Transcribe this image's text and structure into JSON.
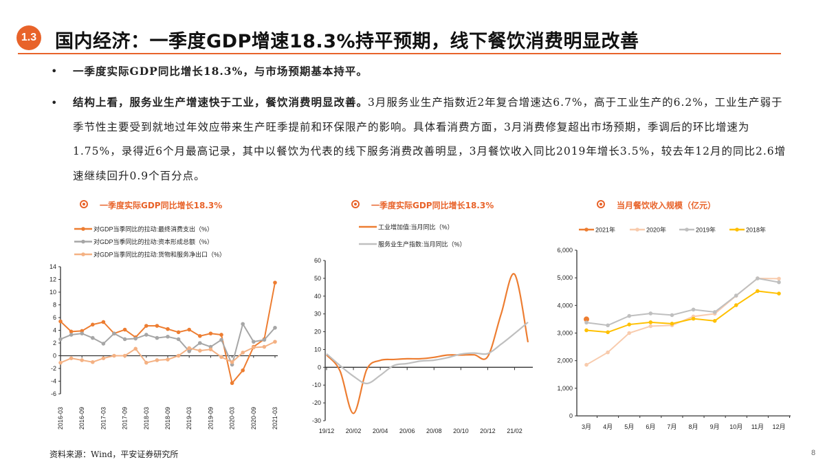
{
  "header": {
    "badge": "1.3",
    "title": "国内经济：一季度GDP增速18.3%持平预期，线下餐饮消费明显改善"
  },
  "bullets": [
    {
      "bold": "一季度实际GDP同比增长18.3%，与市场预期基本持平。",
      "text": ""
    },
    {
      "bold": "结构上看，服务业生产增速快于工业，餐饮消费明显改善。",
      "text": "3月服务业生产指数近2年复合增速达6.7%，高于工业生产的6.2%，工业生产弱于季节性主要受到就地过年效应带来生产旺季提前和环保限产的影响。具体看消费方面，3月消费修复超出市场预期，季调后的环比增速为1.75%，录得近6个月最高记录，其中以餐饮为代表的线下服务消费改善明显，3月餐饮收入同比2019年增长3.5%，较去年12月的同比2.6增速继续回升0.9个百分点。"
    }
  ],
  "footer": {
    "source": "资料来源：Wind，平安证券研究所",
    "page": "8"
  },
  "chart_data": [
    {
      "type": "line",
      "title": "一季度实际GDP同比增长18.3%",
      "x": [
        "2016-03",
        "2016-06",
        "2016-09",
        "2016-12",
        "2017-03",
        "2017-06",
        "2017-09",
        "2017-12",
        "2018-03",
        "2018-06",
        "2018-09",
        "2018-12",
        "2019-03",
        "2019-06",
        "2019-09",
        "2019-12",
        "2020-03",
        "2020-06",
        "2020-09",
        "2020-12",
        "2021-03"
      ],
      "tick_labels": [
        "2016-03",
        "2016-09",
        "2017-03",
        "2017-09",
        "2018-03",
        "2018-09",
        "2019-03",
        "2019-09",
        "2020-03",
        "2020-09",
        "2021-03"
      ],
      "ylim": [
        -6,
        14
      ],
      "yticks": [
        -6,
        -4,
        -2,
        0,
        2,
        4,
        6,
        8,
        10,
        12,
        14
      ],
      "legend_placement": "top-left",
      "series": [
        {
          "name": "对GDP当季同比的拉动:最终消费支出（%）",
          "color": "#ED7D31",
          "values": [
            5.4,
            3.8,
            3.9,
            4.9,
            5.3,
            3.5,
            4.1,
            2.9,
            4.7,
            4.7,
            4.2,
            3.7,
            4.1,
            3.1,
            3.5,
            3.3,
            -4.3,
            -2.3,
            1.4,
            2.6,
            11.5
          ]
        },
        {
          "name": "对GDP当季同比的拉动:资本形成总额（%）",
          "color": "#A6A6A6",
          "values": [
            2.6,
            3.3,
            3.5,
            2.8,
            1.9,
            3.5,
            2.6,
            2.7,
            3.3,
            2.8,
            3.0,
            2.6,
            0.7,
            2.0,
            1.4,
            2.5,
            -1.4,
            5.0,
            2.2,
            2.5,
            4.4
          ]
        },
        {
          "name": "对GDP当季同比的拉动:货物和服务净出口（%）",
          "color": "#F4B183",
          "values": [
            -1.1,
            -0.4,
            -0.7,
            -1.0,
            -0.4,
            0.0,
            0.0,
            1.1,
            -1.1,
            -0.7,
            -0.6,
            0.0,
            1.2,
            0.8,
            1.0,
            -0.2,
            -1.0,
            0.5,
            1.3,
            1.4,
            2.2
          ]
        }
      ]
    },
    {
      "type": "line",
      "title": "一季度实际GDP同比增长18.3%",
      "x": [
        "19/12",
        "20/01",
        "20/02",
        "20/03",
        "20/04",
        "20/05",
        "20/06",
        "20/07",
        "20/08",
        "20/09",
        "20/10",
        "20/11",
        "20/12",
        "21/01",
        "21/02",
        "21/03"
      ],
      "tick_labels": [
        "19/12",
        "20/02",
        "20/04",
        "20/06",
        "20/08",
        "20/10",
        "20/12",
        "21/02"
      ],
      "ylim": [
        -30,
        60
      ],
      "yticks": [
        -30,
        -20,
        -10,
        0,
        10,
        20,
        30,
        40,
        50,
        60
      ],
      "legend_placement": "top",
      "series": [
        {
          "name": "工业增加值:当月同比（%）",
          "color": "#ED7D31",
          "values": [
            6.9,
            -2,
            -25.9,
            -1.1,
            3.9,
            4.4,
            4.8,
            4.8,
            5.6,
            6.9,
            6.9,
            7.0,
            6.0,
            30,
            52.3,
            14.1
          ]
        },
        {
          "name": "服务业生产指数:当月同比（%）",
          "color": "#BFBFBF",
          "values": [
            7.6,
            1,
            -5,
            -9.1,
            -4.5,
            1.0,
            2.1,
            3.5,
            4.0,
            5.4,
            7.4,
            8.0,
            7.7,
            13,
            19,
            25.3
          ]
        }
      ]
    },
    {
      "type": "line",
      "title": "当月餐饮收入规模（亿元）",
      "x": [
        "3月",
        "4月",
        "5月",
        "6月",
        "7月",
        "8月",
        "9月",
        "10月",
        "11月",
        "12月"
      ],
      "ylim": [
        0,
        6000
      ],
      "yticks": [
        "0",
        "1,000",
        "2,000",
        "3,000",
        "4,000",
        "5,000",
        "6,000"
      ],
      "legend_placement": "top",
      "series": [
        {
          "name": "2021年",
          "color": "#ED7D31",
          "values": [
            3500,
            null,
            null,
            null,
            null,
            null,
            null,
            null,
            null,
            null
          ]
        },
        {
          "name": "2020年",
          "color": "#F8CBAD",
          "values": [
            1850,
            2300,
            3000,
            3250,
            3280,
            3600,
            3700,
            4350,
            4980,
            4970
          ]
        },
        {
          "name": "2019年",
          "color": "#BFBFBF",
          "values": [
            3380,
            3280,
            3620,
            3710,
            3650,
            3850,
            3760,
            4360,
            4980,
            4840
          ]
        },
        {
          "name": "2018年",
          "color": "#FFC000",
          "values": [
            3100,
            3030,
            3310,
            3390,
            3340,
            3520,
            3440,
            4010,
            4520,
            4430
          ]
        }
      ]
    }
  ]
}
